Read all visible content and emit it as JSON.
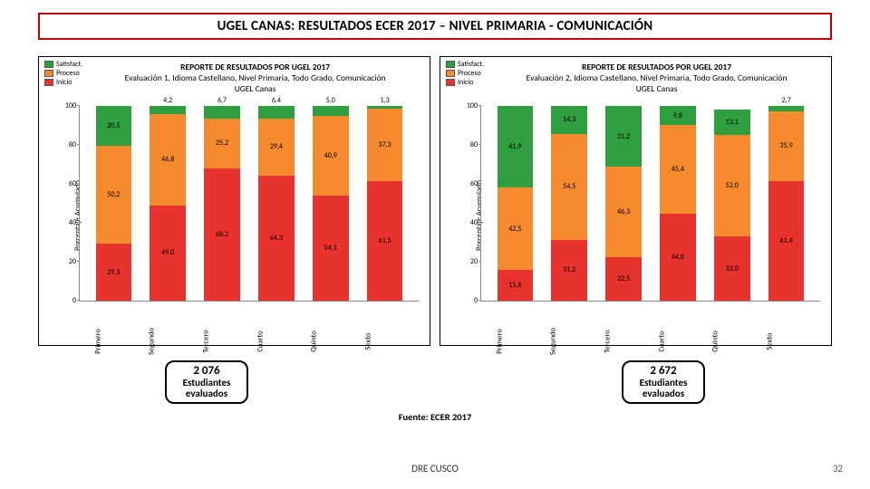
{
  "title": "UGEL CANAS: RESULTADOS ECER 2017 – NIVEL PRIMARIA - COMUNICACIÓN",
  "colors": {
    "satisfact": "#2e9e3f",
    "proceso": "#f58b2e",
    "inicio": "#e8322e",
    "border": "#c00000",
    "panel_border": "#000000",
    "axis": "#888888",
    "bg": "#ffffff"
  },
  "legend": [
    {
      "label": "Satisfact.",
      "color": "#2e9e3f"
    },
    {
      "label": "Proceso",
      "color": "#f58b2e"
    },
    {
      "label": "Inicio",
      "color": "#e8322e"
    }
  ],
  "axis": {
    "ylabel": "Porcentaje Acumulado",
    "ylim": [
      0,
      100
    ],
    "yticks": [
      0,
      20,
      40,
      60,
      80,
      100
    ]
  },
  "categories": [
    "Primero",
    "Segundo",
    "Tercero",
    "Cuarto",
    "Quinto",
    "Sexto"
  ],
  "chart1": {
    "title_line1": "REPORTE DE RESULTADOS POR UGEL 2017",
    "title_line2": "Evaluación 1, Idioma Castellano, Nivel Primaria, Todo Grado, Comunicación",
    "title_line3": "UGEL Canas",
    "data": [
      {
        "inicio": 29.3,
        "proceso": 50.2,
        "satisfact": 20.5
      },
      {
        "inicio": 49.0,
        "proceso": 46.8,
        "satisfact": 4.2
      },
      {
        "inicio": 68.2,
        "proceso": 25.2,
        "satisfact": 6.7
      },
      {
        "inicio": 64.3,
        "proceso": 29.4,
        "satisfact": 6.4
      },
      {
        "inicio": 54.1,
        "proceso": 40.9,
        "satisfact": 5.0
      },
      {
        "inicio": 61.5,
        "proceso": 37.3,
        "satisfact": 1.3
      }
    ]
  },
  "chart2": {
    "title_line1": "REPORTE DE RESULTADOS POR UGEL 2017",
    "title_line2": "Evaluación 2, Idioma Castellano, Nivel Primaria, Todo Grado, Comunicación",
    "title_line3": "UGEL Canas",
    "data": [
      {
        "inicio": 15.6,
        "proceso": 42.5,
        "satisfact": 41.9
      },
      {
        "inicio": 31.2,
        "proceso": 54.5,
        "satisfact": 14.3
      },
      {
        "inicio": 22.5,
        "proceso": 46.3,
        "satisfact": 31.2
      },
      {
        "inicio": 44.8,
        "proceso": 45.4,
        "satisfact": 9.8
      },
      {
        "inicio": 33.0,
        "proceso": 52.0,
        "satisfact": 13.1,
        "satisfact_hidden": true
      },
      {
        "inicio": 61.4,
        "proceso": 35.9,
        "satisfact": 2.7
      }
    ]
  },
  "student_box1": {
    "num": "2 076",
    "line1": "Estudiantes",
    "line2": "evaluados"
  },
  "student_box2": {
    "num": "2 672",
    "line1": "Estudiantes",
    "line2": "evaluados"
  },
  "fuente": "Fuente: ECER 2017",
  "footer": "DRE CUSCO",
  "page": "32"
}
